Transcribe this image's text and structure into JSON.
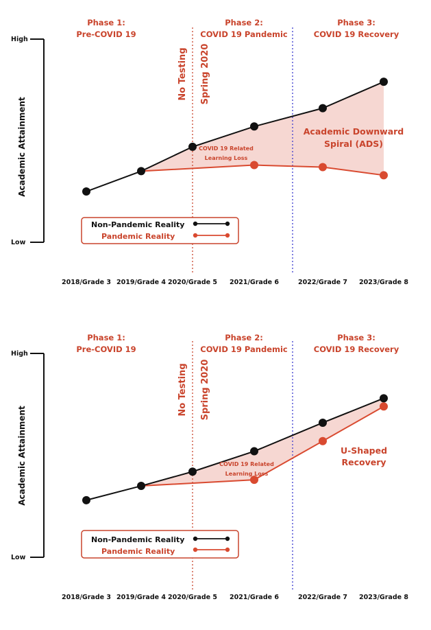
{
  "colors": {
    "non_pandemic": "#111111",
    "pandemic": "#d94a30",
    "accent_text": "#c9442c",
    "gap_fill": "#f6d7d2",
    "phase1_divider": "#c9442c",
    "phase2_divider": "#3a3ad0"
  },
  "chart_data": [
    {
      "type": "line",
      "categories": [
        "2018/Grade 3",
        "2019/Grade 4",
        "2020/Grade 5",
        "2021/Grade 6",
        "2022/Grade 7",
        "2023/Grade 8"
      ],
      "ylabel": "Academic Attainment",
      "y_axis_labels": {
        "high": "High",
        "low": "Low"
      },
      "ylim": [
        0,
        10
      ],
      "phases": [
        {
          "title": "Phase 1:",
          "subtitle": "Pre-COVID 19"
        },
        {
          "title": "Phase 2:",
          "subtitle": "COVID 19 Pandemic"
        },
        {
          "title": "Phase 3:",
          "subtitle": "COVID 19 Recovery"
        }
      ],
      "vertical_notes": [
        "No Testing",
        "Spring 2020"
      ],
      "gap_label": [
        "COVID 19 Related",
        "Learning Loss"
      ],
      "annotation": [
        "Academic Downward",
        "Spiral (ADS)"
      ],
      "legend": [
        "Non-Pandemic Reality",
        "Pandemic Reality"
      ],
      "series": [
        {
          "name": "Non-Pandemic Reality",
          "values": [
            2.5,
            3.5,
            4.7,
            5.7,
            6.6,
            7.9
          ]
        },
        {
          "name": "Pandemic Reality",
          "values": [
            null,
            3.5,
            null,
            3.8,
            3.7,
            3.3
          ]
        }
      ]
    },
    {
      "type": "line",
      "categories": [
        "2018/Grade 3",
        "2019/Grade 4",
        "2020/Grade 5",
        "2021/Grade 6",
        "2022/Grade 7",
        "2023/Grade 8"
      ],
      "ylabel": "Academic Attainment",
      "y_axis_labels": {
        "high": "High",
        "low": "Low"
      },
      "ylim": [
        0,
        10
      ],
      "phases": [
        {
          "title": "Phase 1:",
          "subtitle": "Pre-COVID 19"
        },
        {
          "title": "Phase 2:",
          "subtitle": "COVID 19 Pandemic"
        },
        {
          "title": "Phase 3:",
          "subtitle": "COVID 19 Recovery"
        }
      ],
      "vertical_notes": [
        "No Testing",
        "Spring 2020"
      ],
      "gap_label": [
        "COVID 19 Related",
        "Learning Loss"
      ],
      "annotation": [
        "U-Shaped",
        "Recovery"
      ],
      "legend": [
        "Non-Pandemic Reality",
        "Pandemic Reality"
      ],
      "series": [
        {
          "name": "Non-Pandemic Reality",
          "values": [
            2.8,
            3.5,
            4.2,
            5.2,
            6.6,
            7.8
          ]
        },
        {
          "name": "Pandemic Reality",
          "values": [
            null,
            3.5,
            null,
            3.8,
            5.7,
            7.4
          ]
        }
      ]
    }
  ]
}
